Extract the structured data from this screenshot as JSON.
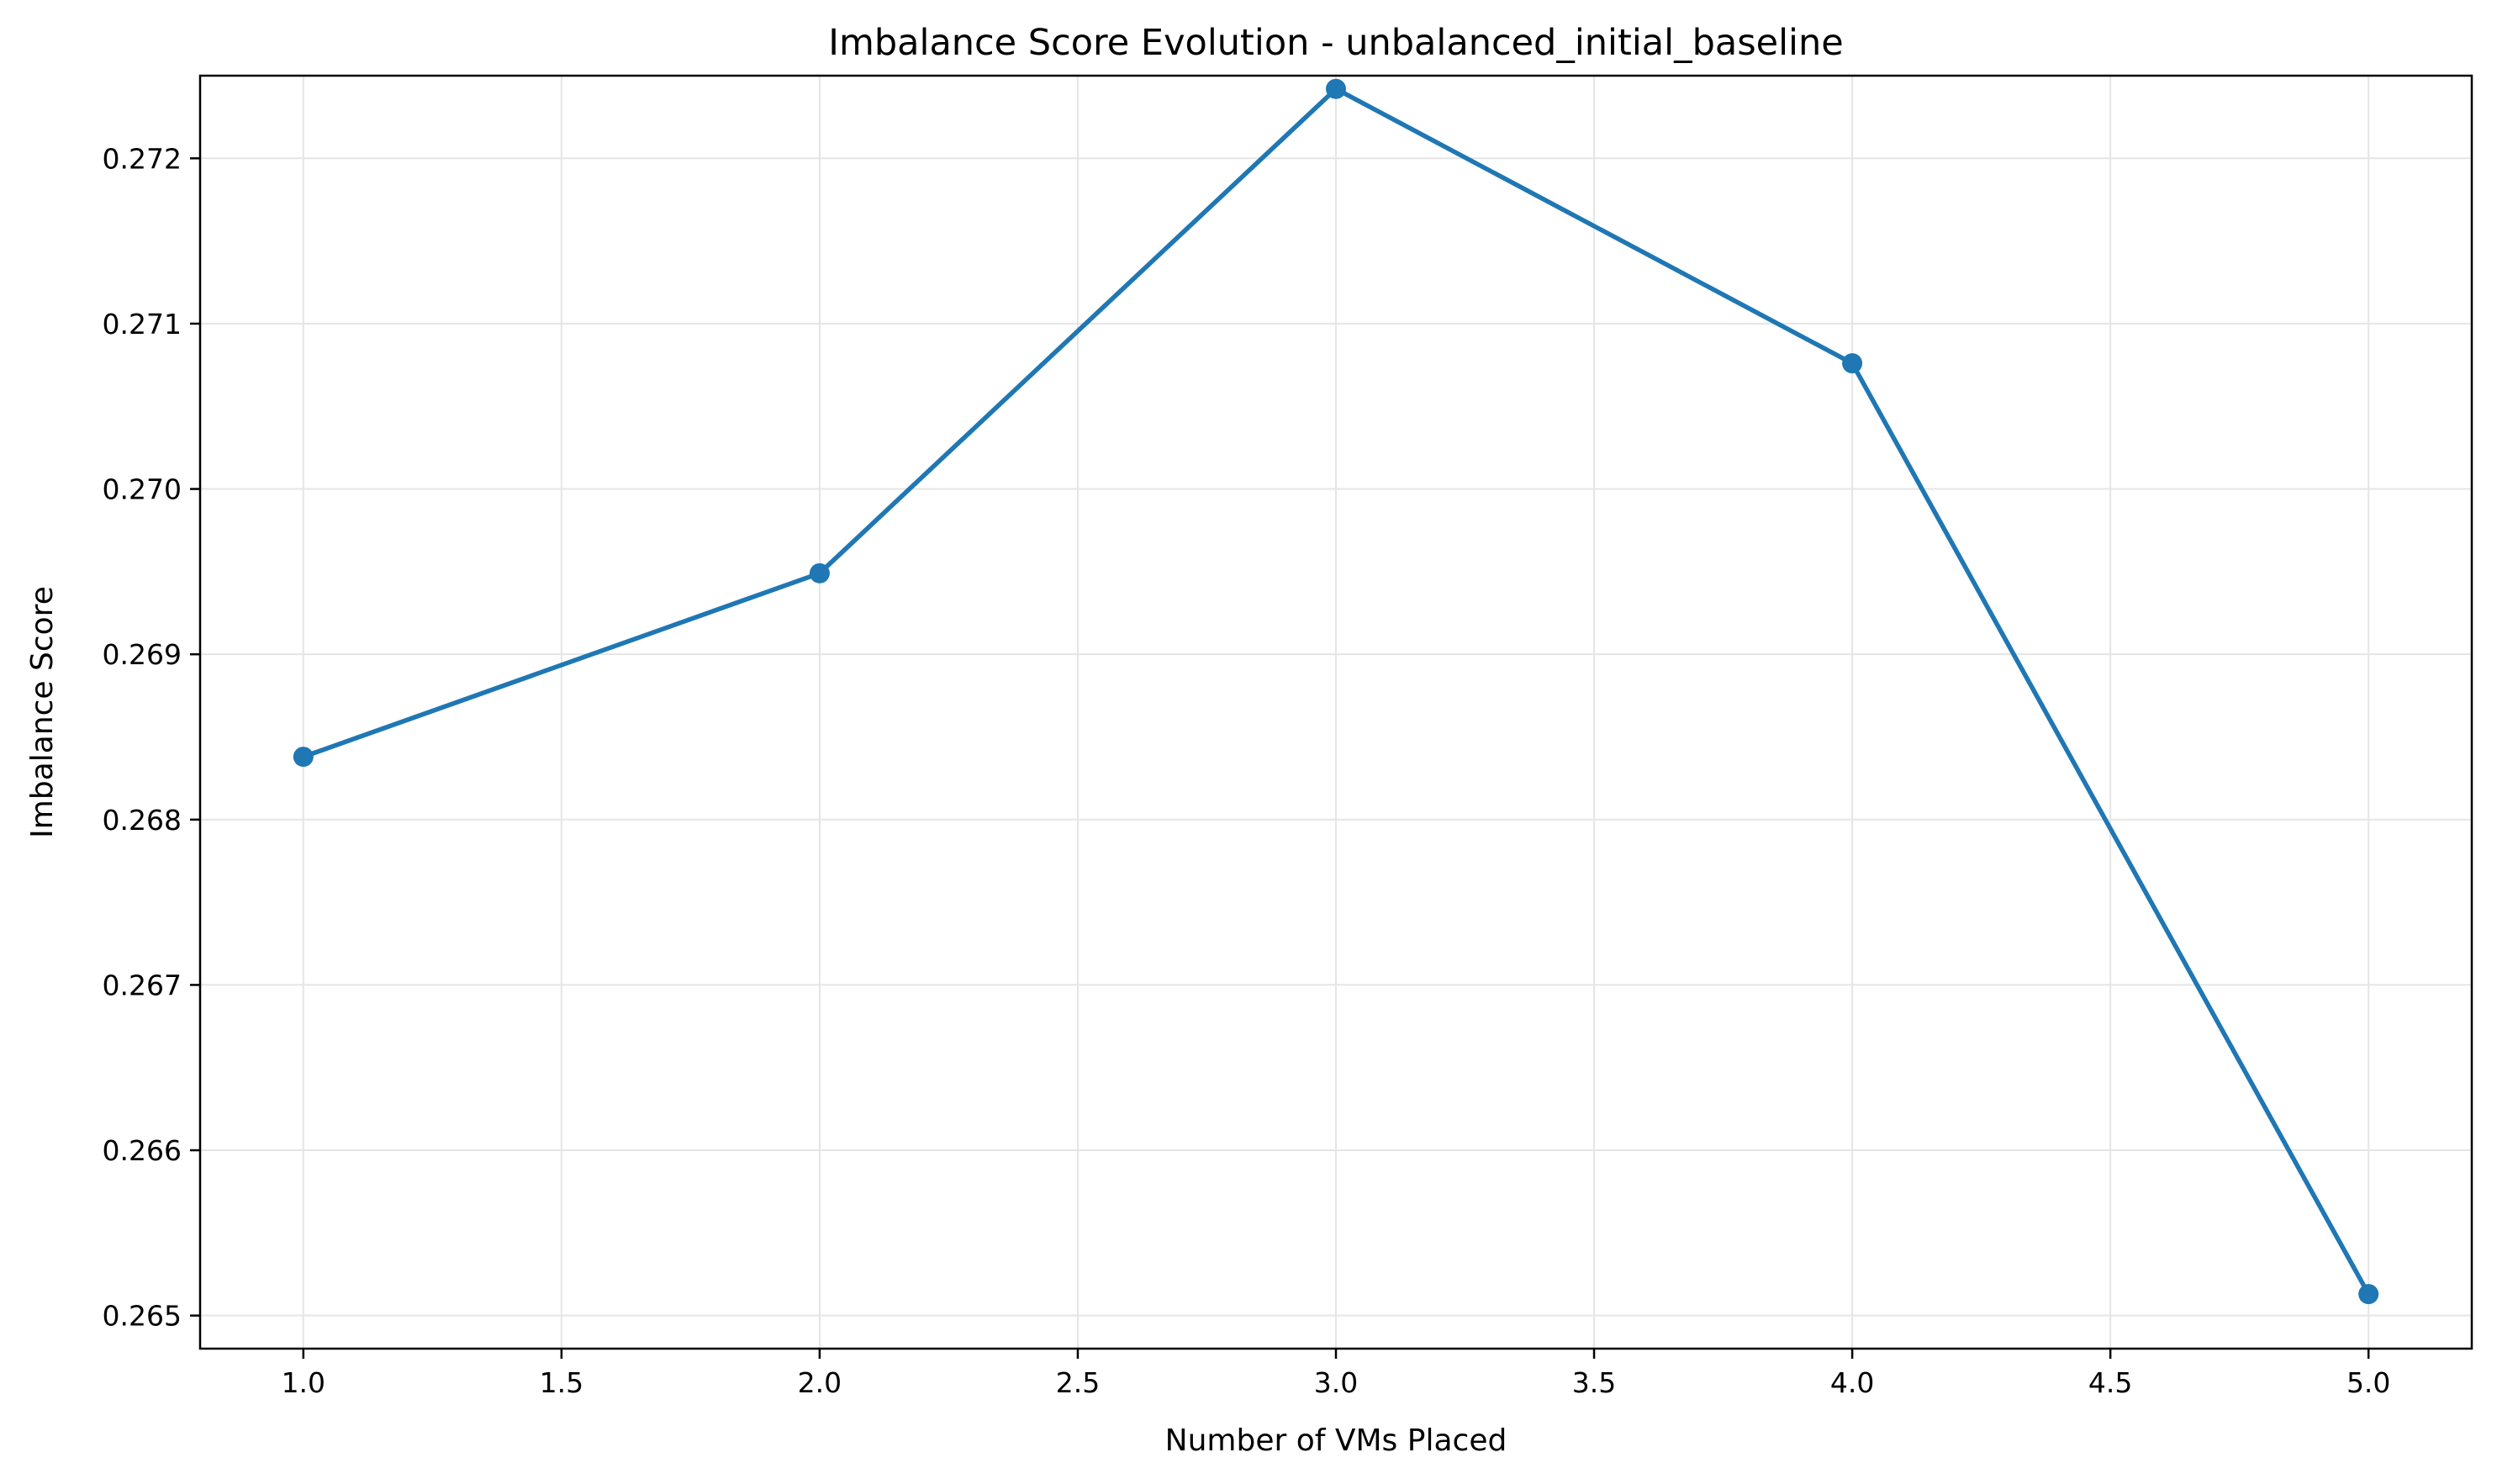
{
  "chart_data": {
    "type": "line",
    "title": "Imbalance Score Evolution - unbalanced_initial_baseline",
    "xlabel": "Number of VMs Placed",
    "ylabel": "Imbalance Score",
    "xlim": [
      0.8,
      5.2
    ],
    "ylim": [
      0.2648,
      0.2725
    ],
    "x_ticks": [
      1.0,
      1.5,
      2.0,
      2.5,
      3.0,
      3.5,
      4.0,
      4.5,
      5.0
    ],
    "x_tick_labels": [
      "1.0",
      "1.5",
      "2.0",
      "2.5",
      "3.0",
      "3.5",
      "4.0",
      "4.5",
      "5.0"
    ],
    "y_ticks": [
      0.265,
      0.266,
      0.267,
      0.268,
      0.269,
      0.27,
      0.271,
      0.272
    ],
    "y_tick_labels": [
      "0.265",
      "0.266",
      "0.267",
      "0.268",
      "0.269",
      "0.270",
      "0.271",
      "0.272"
    ],
    "grid": true,
    "series": [
      {
        "color": "#1f77b4",
        "marker": "circle",
        "x": [
          1.0,
          2.0,
          3.0,
          4.0,
          5.0
        ],
        "y": [
          0.26838,
          0.26949,
          0.27242,
          0.27076,
          0.26513
        ]
      }
    ]
  }
}
